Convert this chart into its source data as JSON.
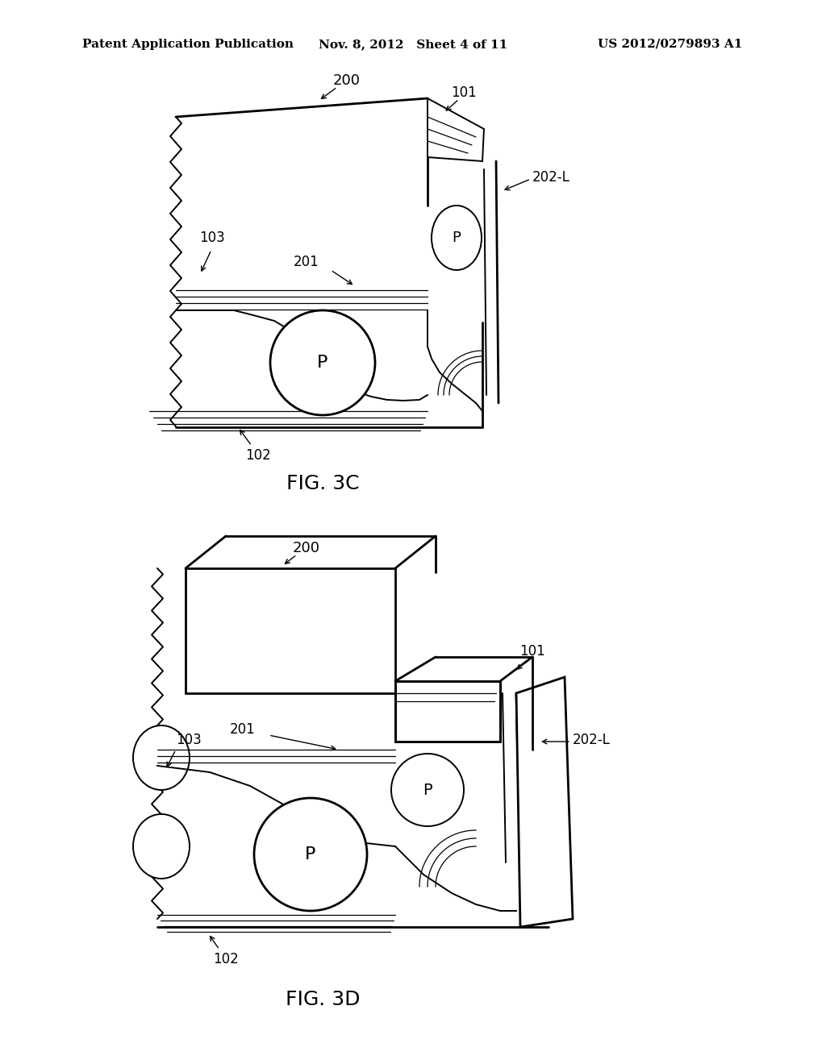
{
  "bg_color": "#ffffff",
  "header_left": "Patent Application Publication",
  "header_mid": "Nov. 8, 2012   Sheet 4 of 11",
  "header_right": "US 2012/0279893 A1",
  "fig3c_label": "FIG. 3C",
  "fig3d_label": "FIG. 3D",
  "lc": "#000000",
  "lw": 1.4,
  "lw_thin": 0.9,
  "lw_thick": 2.0
}
